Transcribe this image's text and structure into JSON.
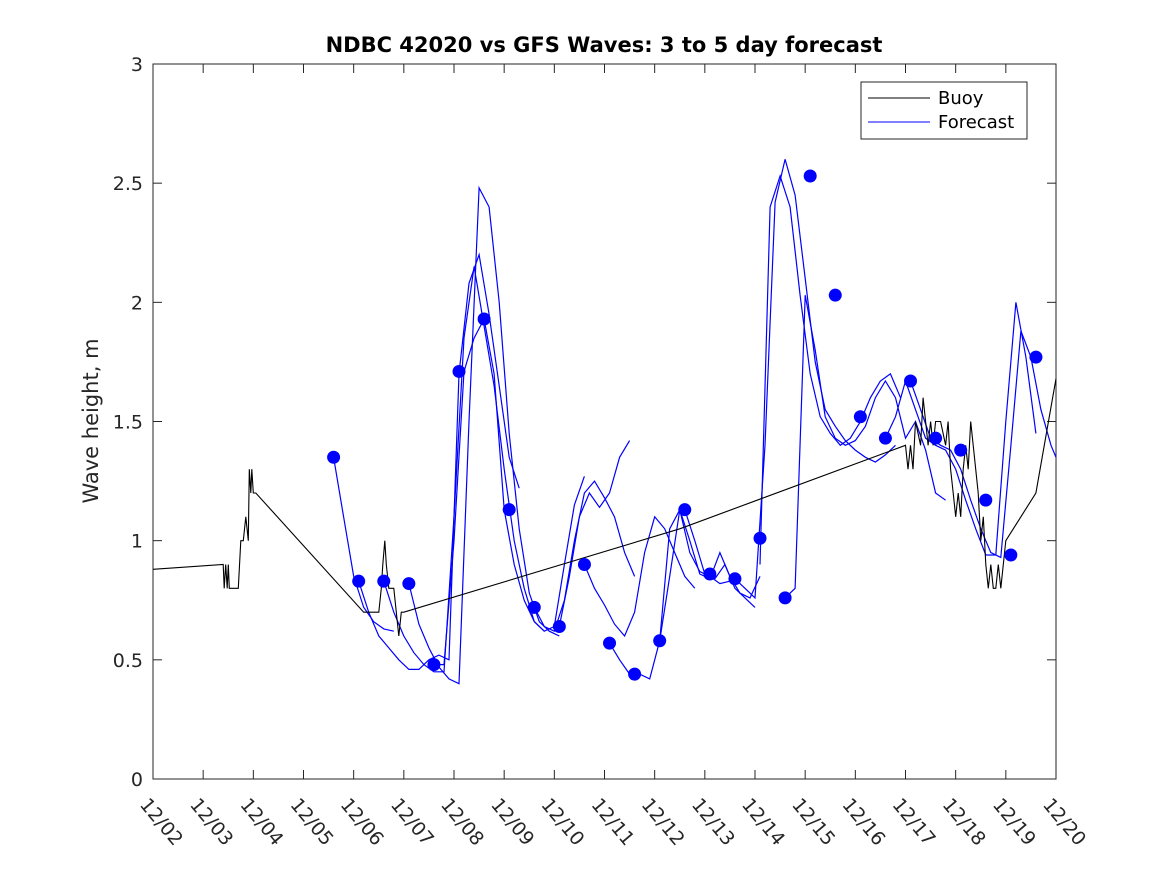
{
  "chart_data": {
    "type": "line",
    "title": "NDBC 42020 vs GFS Waves: 3 to 5 day forecast",
    "xlabel": "",
    "ylabel": "Wave height, m",
    "xlim": [
      0,
      18
    ],
    "ylim": [
      0,
      3
    ],
    "x_ticks": [
      0,
      1,
      2,
      3,
      4,
      5,
      6,
      7,
      8,
      9,
      10,
      11,
      12,
      13,
      14,
      15,
      16,
      17,
      18
    ],
    "x_tick_labels": [
      "12/02",
      "12/03",
      "12/04",
      "12/05",
      "12/06",
      "12/07",
      "12/08",
      "12/09",
      "12/10",
      "12/11",
      "12/12",
      "12/13",
      "12/14",
      "12/15",
      "12/16",
      "12/17",
      "12/18",
      "12/19",
      "12/20"
    ],
    "y_ticks": [
      0,
      0.5,
      1,
      1.5,
      2,
      2.5,
      3
    ],
    "y_tick_labels": [
      "0",
      "0.5",
      "1",
      "1.5",
      "2",
      "2.5",
      "3"
    ],
    "grid": false,
    "legend_position": "top-right",
    "colors": {
      "buoy": "#000000",
      "forecast": "#0000ff",
      "markers": "#0000ff",
      "axes": "#262626"
    },
    "series": [
      {
        "name": "Buoy",
        "x": [
          0,
          1.4,
          1.42,
          1.45,
          1.48,
          1.5,
          1.52,
          1.55,
          1.7,
          1.75,
          1.8,
          1.85,
          1.9,
          1.92,
          1.95,
          1.97,
          2.0,
          2.02,
          2.05,
          4.2,
          4.5,
          4.55,
          4.58,
          4.62,
          4.65,
          4.7,
          4.8,
          4.9,
          4.95,
          5.0,
          10.5,
          15.0,
          15.05,
          15.1,
          15.15,
          15.2,
          15.3,
          15.35,
          15.45,
          15.5,
          15.55,
          15.6,
          15.7,
          15.8,
          15.85,
          15.9,
          15.95,
          16.0,
          16.05,
          16.1,
          16.15,
          16.2,
          16.25,
          16.3,
          16.35,
          16.4,
          16.45,
          16.5,
          16.55,
          16.6,
          16.65,
          16.7,
          16.75,
          16.8,
          16.85,
          16.9,
          17.0,
          17.6,
          18.0
        ],
        "y": [
          0.88,
          0.9,
          0.8,
          0.9,
          0.8,
          0.9,
          0.8,
          0.8,
          0.8,
          1.0,
          1.0,
          1.1,
          1.0,
          1.3,
          1.2,
          1.3,
          1.2,
          1.2,
          1.2,
          0.7,
          0.7,
          0.8,
          0.9,
          1.0,
          0.9,
          0.8,
          0.8,
          0.6,
          0.7,
          0.7,
          1.05,
          1.4,
          1.3,
          1.4,
          1.3,
          1.5,
          1.4,
          1.6,
          1.4,
          1.5,
          1.4,
          1.5,
          1.5,
          1.4,
          1.5,
          1.3,
          1.2,
          1.1,
          1.2,
          1.1,
          1.3,
          1.4,
          1.3,
          1.5,
          1.4,
          1.3,
          1.2,
          1.0,
          1.1,
          0.9,
          0.8,
          0.9,
          0.8,
          0.8,
          0.9,
          0.8,
          1.0,
          1.2,
          1.68
        ]
      },
      {
        "name": "Forecast",
        "lines": [
          {
            "x": [
              3.6,
              3.8,
              4.0,
              4.2,
              4.4,
              4.6,
              4.8
            ],
            "y": [
              1.35,
              1.1,
              0.85,
              0.72,
              0.66,
              0.63,
              0.62
            ]
          },
          {
            "x": [
              4.1,
              4.3,
              4.5,
              4.7,
              4.9,
              5.1,
              5.3,
              5.5,
              5.7,
              5.9,
              6.1,
              6.3,
              6.5,
              6.7,
              6.9,
              7.1,
              7.3
            ],
            "y": [
              0.83,
              0.7,
              0.6,
              0.55,
              0.5,
              0.46,
              0.46,
              0.5,
              0.52,
              0.5,
              1.7,
              2.08,
              2.2,
              1.95,
              1.65,
              1.35,
              1.22
            ]
          },
          {
            "x": [
              4.6,
              4.8,
              5.0,
              5.2,
              5.4,
              5.6,
              5.8,
              6.0,
              6.2,
              6.4,
              6.6,
              6.8,
              7.0,
              7.2,
              7.4,
              7.6,
              7.8
            ],
            "y": [
              0.83,
              0.7,
              0.6,
              0.53,
              0.48,
              0.45,
              0.45,
              1.1,
              1.85,
              2.15,
              1.9,
              1.65,
              1.3,
              1.0,
              0.8,
              0.66,
              0.62
            ]
          },
          {
            "x": [
              5.1,
              5.3,
              5.5,
              5.7,
              5.9,
              6.1,
              6.3,
              6.5,
              6.7,
              6.9,
              7.1,
              7.3,
              7.5,
              7.7,
              7.9,
              8.1
            ],
            "y": [
              0.82,
              0.65,
              0.55,
              0.47,
              0.42,
              0.4,
              1.5,
              2.48,
              2.4,
              2.0,
              1.45,
              1.05,
              0.78,
              0.66,
              0.62,
              0.6
            ]
          },
          {
            "x": [
              5.6,
              5.8,
              6.0,
              6.2,
              6.4,
              6.6,
              6.8,
              7.0,
              7.2,
              7.4,
              7.6,
              7.8,
              8.0,
              8.2,
              8.4,
              8.6
            ],
            "y": [
              0.48,
              0.48,
              1.0,
              1.71,
              1.85,
              1.93,
              1.7,
              1.13,
              0.9,
              0.75,
              0.66,
              0.62,
              0.64,
              0.9,
              1.15,
              1.27
            ]
          },
          {
            "x": [
              7.6,
              7.8,
              8.0,
              8.2,
              8.4,
              8.6,
              8.8,
              9.0,
              9.2,
              9.4,
              9.6
            ],
            "y": [
              0.72,
              0.64,
              0.62,
              0.75,
              1.0,
              1.2,
              1.25,
              1.18,
              1.1,
              0.95,
              0.85
            ]
          },
          {
            "x": [
              8.1,
              8.3,
              8.5,
              8.7,
              8.9,
              9.1,
              9.3,
              9.5
            ],
            "y": [
              0.64,
              0.85,
              1.1,
              1.2,
              1.14,
              1.2,
              1.35,
              1.42
            ]
          },
          {
            "x": [
              8.6,
              8.8,
              9.0,
              9.2,
              9.4,
              9.6,
              9.8,
              10.0,
              10.2,
              10.4,
              10.6,
              10.8
            ],
            "y": [
              0.9,
              0.8,
              0.73,
              0.65,
              0.6,
              0.7,
              0.95,
              1.1,
              1.05,
              0.95,
              0.85,
              0.8
            ]
          },
          {
            "x": [
              9.1,
              9.3,
              9.5,
              9.7,
              9.9,
              10.1,
              10.3,
              10.5,
              10.7,
              10.9,
              11.1,
              11.3,
              11.5
            ],
            "y": [
              0.57,
              0.5,
              0.44,
              0.44,
              0.42,
              0.58,
              1.05,
              1.13,
              0.95,
              0.87,
              0.85,
              0.82,
              0.83
            ]
          },
          {
            "x": [
              10.1,
              10.3,
              10.5,
              10.7,
              10.9,
              11.1,
              11.3,
              11.5,
              11.7,
              11.9,
              12.1
            ],
            "y": [
              0.58,
              0.85,
              1.13,
              1.0,
              0.86,
              0.84,
              0.95,
              0.85,
              0.78,
              0.76,
              0.85
            ]
          },
          {
            "x": [
              10.6,
              10.8,
              11.0,
              11.2,
              11.4,
              11.6,
              11.8,
              12.0
            ],
            "y": [
              1.13,
              1.0,
              0.86,
              0.84,
              0.9,
              0.8,
              0.76,
              0.72
            ]
          },
          {
            "x": [
              11.6,
              11.8,
              12.0,
              12.2,
              12.4,
              12.6,
              12.8,
              13.0,
              13.2,
              13.4,
              13.6,
              13.8,
              14.0,
              14.2,
              14.4,
              14.6,
              14.8
            ],
            "y": [
              0.84,
              0.8,
              0.76,
              1.4,
              2.42,
              2.6,
              2.45,
              2.1,
              1.75,
              1.55,
              1.48,
              1.42,
              1.38,
              1.35,
              1.33,
              1.36,
              1.4
            ]
          },
          {
            "x": [
              12.1,
              12.3,
              12.5,
              12.7,
              12.9,
              13.1,
              13.3,
              13.5,
              13.7,
              13.9,
              14.1,
              14.3,
              14.5,
              14.7,
              14.9
            ],
            "y": [
              0.9,
              2.4,
              2.53,
              2.4,
              2.03,
              1.7,
              1.52,
              1.45,
              1.4,
              1.43,
              1.5,
              1.6,
              1.67,
              1.7,
              1.6
            ]
          },
          {
            "x": [
              12.6,
              12.8,
              13.0,
              13.2,
              13.4,
              13.6,
              13.8,
              14.0,
              14.2,
              14.4,
              14.6,
              14.8,
              15.0,
              15.2,
              15.4,
              15.6,
              15.8
            ],
            "y": [
              0.76,
              0.8,
              2.03,
              1.8,
              1.52,
              1.43,
              1.4,
              1.42,
              1.48,
              1.6,
              1.67,
              1.6,
              1.43,
              1.5,
              1.38,
              1.2,
              1.17
            ]
          },
          {
            "x": [
              14.6,
              14.8,
              15.0,
              15.2,
              15.4,
              15.6,
              15.8,
              16.0,
              16.2,
              16.4,
              16.6,
              16.8,
              17.0,
              17.2,
              17.4,
              17.6
            ],
            "y": [
              1.43,
              1.52,
              1.67,
              1.55,
              1.43,
              1.4,
              1.38,
              1.3,
              1.17,
              1.05,
              0.94,
              0.94,
              1.5,
              2.0,
              1.77,
              1.45
            ]
          },
          {
            "x": [
              15.1,
              15.3,
              15.5,
              15.7,
              15.9,
              16.1,
              16.3,
              16.5,
              16.7,
              16.9,
              17.1,
              17.3,
              17.5,
              17.7,
              17.9,
              18.0
            ],
            "y": [
              1.67,
              1.55,
              1.43,
              1.4,
              1.38,
              1.3,
              1.17,
              1.05,
              0.95,
              0.93,
              1.4,
              1.88,
              1.77,
              1.55,
              1.4,
              1.35
            ]
          }
        ]
      }
    ],
    "markers": {
      "x": [
        3.6,
        4.1,
        4.6,
        5.1,
        5.6,
        6.1,
        6.6,
        7.1,
        7.6,
        8.1,
        8.6,
        9.1,
        9.6,
        10.1,
        10.6,
        11.1,
        11.6,
        12.1,
        12.6,
        13.1,
        13.6,
        14.1,
        14.6,
        15.1,
        15.6,
        16.1,
        16.6,
        17.1
      ],
      "y": [
        1.35,
        0.83,
        0.83,
        0.82,
        0.48,
        1.71,
        1.93,
        1.13,
        0.72,
        0.64,
        0.9,
        0.57,
        0.44,
        0.58,
        1.13,
        0.86,
        0.84,
        1.01,
        0.76,
        2.53,
        2.03,
        1.52,
        1.43,
        1.67,
        1.43,
        1.38,
        1.17,
        0.94
      ]
    },
    "extra_markers": {
      "x": [
        17.6
      ],
      "y": [
        1.77
      ]
    }
  }
}
